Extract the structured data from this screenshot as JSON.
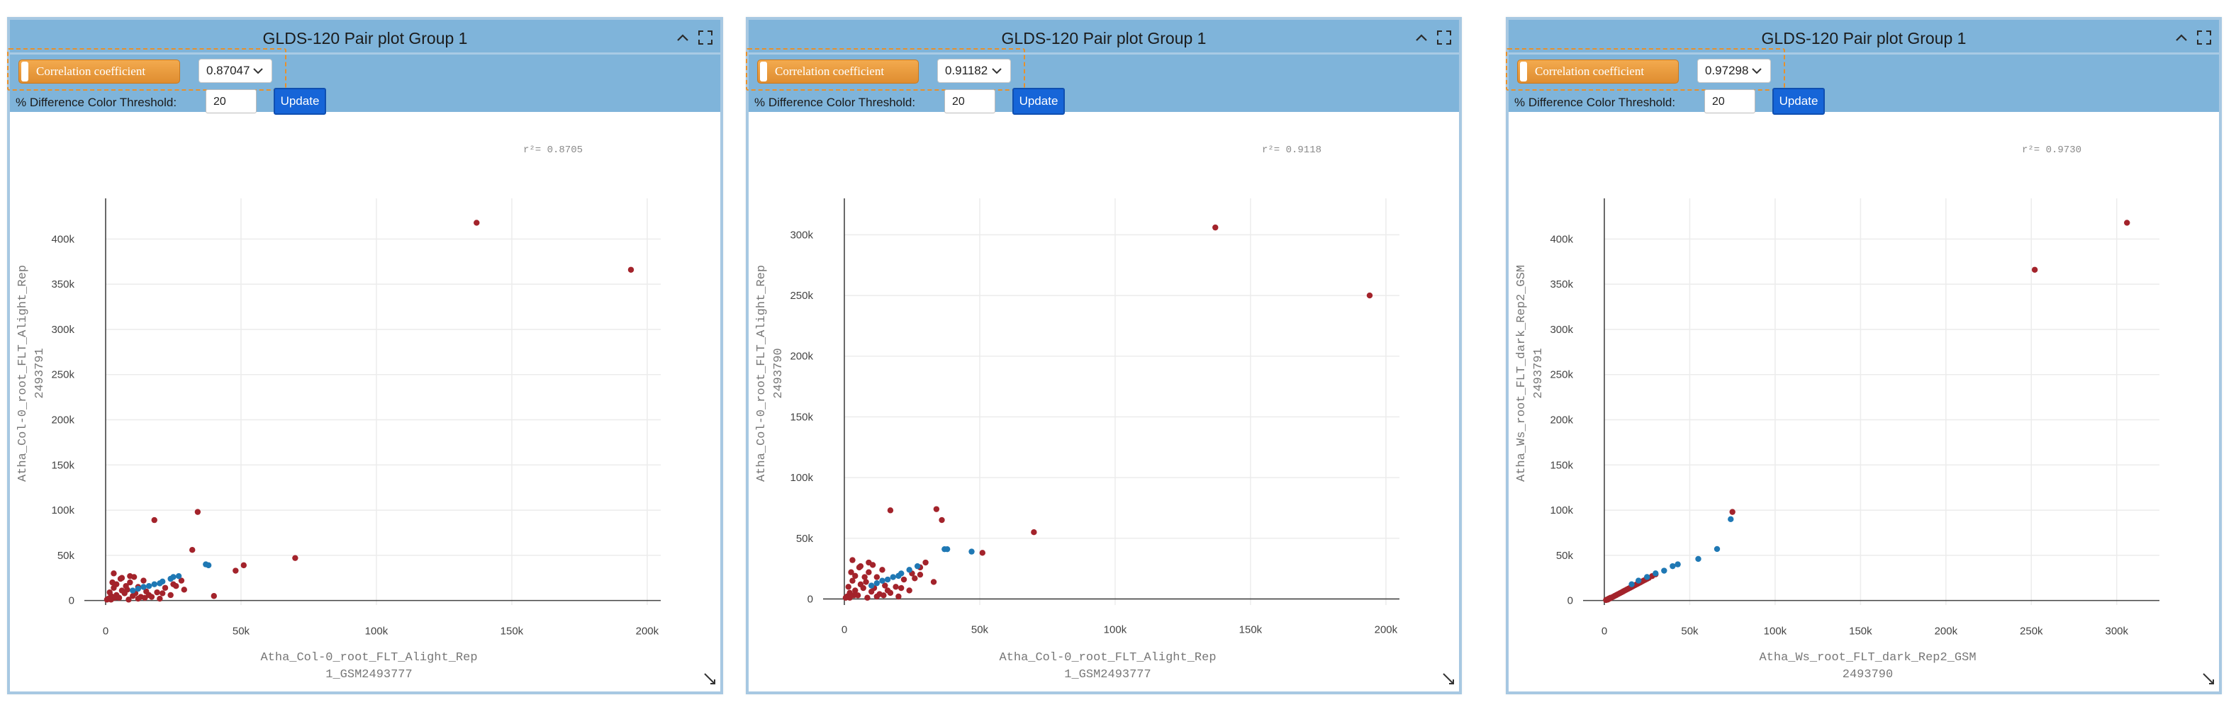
{
  "panels": [
    {
      "title": "GLDS-120 Pair plot Group 1",
      "method_label": "Correlation coefficient",
      "correlation_value": "0.87047",
      "threshold_label": "% Difference Color Threshold:",
      "threshold_value": "20",
      "update_label": "Update",
      "r2_text": "r²= 0.8705"
    },
    {
      "title": "GLDS-120 Pair plot Group 1",
      "method_label": "Correlation coefficient",
      "correlation_value": "0.91182",
      "threshold_label": "% Difference Color Threshold:",
      "threshold_value": "20",
      "update_label": "Update",
      "r2_text": "r²= 0.9118"
    },
    {
      "title": "GLDS-120 Pair plot Group 1",
      "method_label": "Correlation coefficient",
      "correlation_value": "0.97298",
      "threshold_label": "% Difference Color Threshold:",
      "threshold_value": "20",
      "update_label": "Update",
      "r2_text": "r²= 0.9730"
    }
  ],
  "colors": {
    "header_bg": "#7fb4da",
    "accent_orange": "#e8902b",
    "button_blue": "#1665d8",
    "point_red": "#a3232b",
    "point_blue": "#1f78b4"
  },
  "icons": [
    "chevron-up-icon",
    "expand-icon",
    "chevron-down-icon",
    "resize-icon"
  ],
  "chart_data": [
    {
      "type": "scatter",
      "title": "",
      "xlabel": [
        "Atha_Col-0_root_FLT_Alight_Rep",
        "1_GSM2493777"
      ],
      "ylabel": [
        "Atha_Col-0_root_FLT_Alight_Rep",
        "2493791"
      ],
      "xlim": [
        0,
        205000
      ],
      "ylim": [
        -5000,
        445000
      ],
      "x_ticks": [
        0,
        50000,
        100000,
        150000,
        200000
      ],
      "x_tick_labels": [
        "0",
        "50k",
        "100k",
        "150k",
        "200k"
      ],
      "y_ticks": [
        0,
        50000,
        100000,
        150000,
        200000,
        250000,
        300000,
        350000,
        400000
      ],
      "y_tick_labels": [
        "0",
        "50k",
        "100k",
        "150k",
        "200k",
        "250k",
        "300k",
        "350k",
        "400k"
      ],
      "grid": true,
      "series": [
        {
          "color": "#a3232b",
          "x": [
            137000,
            194000,
            34000,
            18000,
            70000,
            51000,
            48000,
            32000,
            3000,
            6000,
            9000,
            12000,
            15000,
            4000,
            8000,
            11000,
            14000,
            2000,
            5000,
            7000,
            10000,
            13000,
            16000,
            19000,
            22000,
            25000,
            28000,
            3000,
            6000,
            9000,
            1000,
            2000,
            4000,
            1500,
            3500,
            500,
            12000,
            17000,
            21000,
            24000,
            29000,
            40000,
            2500,
            7500,
            10500,
            5500,
            8500,
            14500,
            20000,
            26000
          ],
          "y": [
            418000,
            366000,
            98000,
            89000,
            47000,
            39000,
            33000,
            56000,
            30000,
            25000,
            20000,
            15000,
            10000,
            18000,
            12000,
            8000,
            22000,
            5000,
            3000,
            8000,
            5000,
            4000,
            6000,
            9000,
            14000,
            18000,
            22000,
            14000,
            11000,
            27000,
            2000,
            1000,
            6000,
            9000,
            3000,
            1000,
            2000,
            4000,
            8000,
            6000,
            12000,
            5000,
            20000,
            16000,
            26000,
            24000,
            1000,
            3000,
            2000,
            16000
          ]
        },
        {
          "color": "#1f78b4",
          "x": [
            10000,
            14000,
            18000,
            21000,
            24000,
            27000,
            37000,
            38000,
            16000,
            20000,
            12000,
            25000
          ],
          "y": [
            11000,
            15000,
            18000,
            21000,
            24000,
            27000,
            40000,
            39000,
            16000,
            19000,
            13000,
            26000
          ]
        }
      ]
    },
    {
      "type": "scatter",
      "title": "",
      "xlabel": [
        "Atha_Col-0_root_FLT_Alight_Rep",
        "1_GSM2493777"
      ],
      "ylabel": [
        "Atha_Col-0_root_FLT_Alight_Rep",
        "2493790"
      ],
      "xlim": [
        0,
        205000
      ],
      "ylim": [
        -5000,
        330000
      ],
      "x_ticks": [
        0,
        50000,
        100000,
        150000,
        200000
      ],
      "x_tick_labels": [
        "0",
        "50k",
        "100k",
        "150k",
        "200k"
      ],
      "y_ticks": [
        0,
        50000,
        100000,
        150000,
        200000,
        250000,
        300000
      ],
      "y_tick_labels": [
        "0",
        "50k",
        "100k",
        "150k",
        "200k",
        "250k",
        "300k"
      ],
      "grid": true,
      "series": [
        {
          "color": "#a3232b",
          "x": [
            137000,
            194000,
            34000,
            17000,
            70000,
            51000,
            36000,
            28000,
            3000,
            6000,
            9000,
            12000,
            15000,
            4000,
            8000,
            11000,
            14000,
            2000,
            5000,
            7000,
            10000,
            13000,
            16000,
            19000,
            22000,
            25000,
            28000,
            3000,
            6000,
            9000,
            1000,
            2000,
            4000,
            1500,
            3500,
            500,
            12000,
            17000,
            21000,
            24000,
            30000,
            33000,
            2500,
            7500,
            10500,
            5500,
            8500,
            14500,
            20000,
            26000
          ],
          "y": [
            306000,
            250000,
            74000,
            73000,
            55000,
            38000,
            65000,
            20000,
            32000,
            27000,
            22000,
            18000,
            11000,
            19000,
            14000,
            9000,
            24000,
            5000,
            3000,
            9000,
            6000,
            4000,
            7000,
            10000,
            16000,
            21000,
            26000,
            15000,
            12000,
            30000,
            2000,
            1000,
            7000,
            10000,
            3000,
            1000,
            2000,
            5000,
            9000,
            7000,
            30000,
            14000,
            22000,
            18000,
            28000,
            26000,
            1000,
            3000,
            2000,
            17000
          ]
        },
        {
          "color": "#1f78b4",
          "x": [
            10000,
            14000,
            18000,
            21000,
            24000,
            27000,
            37000,
            38000,
            47000,
            16000,
            20000,
            12000
          ],
          "y": [
            11000,
            15000,
            18000,
            21000,
            24000,
            27000,
            41000,
            41000,
            39000,
            16000,
            19000,
            13000
          ]
        }
      ]
    },
    {
      "type": "scatter",
      "title": "",
      "xlabel": [
        "Atha_Ws_root_FLT_dark_Rep2_GSM",
        "2493790"
      ],
      "ylabel": [
        "Atha_Ws_root_FLT_dark_Rep2_GSM",
        "2493791"
      ],
      "xlim": [
        0,
        325000
      ],
      "ylim": [
        -5000,
        445000
      ],
      "x_ticks": [
        0,
        50000,
        100000,
        150000,
        200000,
        250000,
        300000
      ],
      "x_tick_labels": [
        "0",
        "50k",
        "100k",
        "150k",
        "200k",
        "250k",
        "300k"
      ],
      "y_ticks": [
        0,
        50000,
        100000,
        150000,
        200000,
        250000,
        300000,
        350000,
        400000
      ],
      "y_tick_labels": [
        "0",
        "50k",
        "100k",
        "150k",
        "200k",
        "250k",
        "300k",
        "350k",
        "400k"
      ],
      "grid": true,
      "series": [
        {
          "color": "#a3232b",
          "x": [
            306000,
            252000,
            75000,
            2000,
            4000,
            6000,
            8000,
            10000,
            12000,
            14000,
            16000,
            18000,
            20000,
            22000,
            24000,
            26000,
            28000,
            30000,
            3000,
            5000,
            7000,
            9000,
            11000,
            13000,
            15000,
            17000,
            19000,
            21000,
            23000,
            25000,
            1000,
            1500,
            2500,
            3500
          ],
          "y": [
            418000,
            366000,
            98000,
            1000,
            3000,
            5000,
            7000,
            9000,
            11000,
            13000,
            15000,
            17000,
            19000,
            21000,
            23000,
            25000,
            27000,
            29000,
            2000,
            4000,
            6000,
            8000,
            10000,
            12000,
            14000,
            16000,
            18000,
            20000,
            22000,
            24000,
            500,
            1000,
            2000,
            3000
          ]
        },
        {
          "color": "#1f78b4",
          "x": [
            74000,
            66000,
            55000,
            43000,
            40000,
            35000,
            30000,
            25000,
            20000,
            16000
          ],
          "y": [
            90000,
            57000,
            46000,
            40000,
            38000,
            33000,
            30000,
            26000,
            22000,
            18000
          ]
        }
      ]
    }
  ]
}
